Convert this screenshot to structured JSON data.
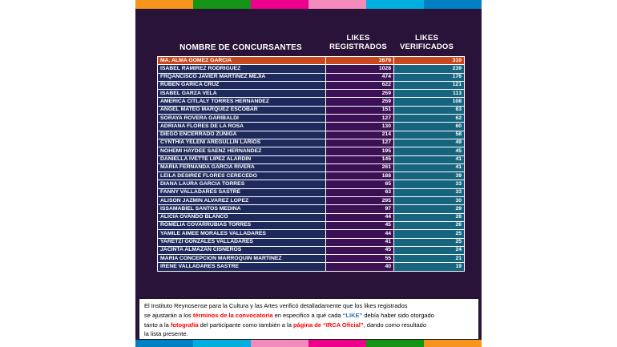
{
  "panel": {
    "background": "#2A1338"
  },
  "bars": {
    "top_colors": [
      "#F7941D",
      "#149414",
      "#EC008C",
      "#F28BBB",
      "#00AEE0",
      "#0080C4"
    ],
    "bottom_colors": [
      "#0080C4",
      "#00AEE0",
      "#F28BBB",
      "#EC008C",
      "#149414",
      "#F7941D"
    ]
  },
  "chart_data": {
    "type": "table",
    "columns": [
      "NOMBRE DE CONCURSANTES",
      "LIKES REGISTRADOS",
      "LIKES VERIFICADOS"
    ],
    "highlight_row_index": 0,
    "rows": [
      [
        "MA. ALMA GOMEZ GARCIA",
        2679,
        310
      ],
      [
        "ISABEL RAMIREZ RODRIGUEZ",
        1028,
        239
      ],
      [
        "FRQANCISCO JAVIER MARTINEZ MEJIA",
        474,
        176
      ],
      [
        "RUBEN GARICA CRUZ",
        622,
        121
      ],
      [
        "ISABEL GARZA VELA",
        259,
        113
      ],
      [
        "AMERICA CITLALY TORRES HERNANDEZ",
        259,
        108
      ],
      [
        "ANGEL MATEO MARQUEZ ESCOBAR",
        151,
        63
      ],
      [
        "SORAYA ROVERA GARIBALDI",
        127,
        62
      ],
      [
        "ADRIANA FLORES DE LA ROSA",
        130,
        60
      ],
      [
        "DIEGO ENCERRADO ZUÑIGA",
        214,
        58
      ],
      [
        "CYNTHIA YELENI AREGULLIN LARIOS",
        127,
        49
      ],
      [
        "NOHEMI HAYDEE SAENZ HERNANDEZ",
        195,
        45
      ],
      [
        "DANIELLA IVETTE LIPEZ ALARDIN",
        145,
        41
      ],
      [
        "MARIA FERNANDA GARCIA RIVERA",
        261,
        41
      ],
      [
        "LEILA DESIREE FLORES CERECEDO",
        188,
        39
      ],
      [
        "DIANA LAURA GARCIA TORRES",
        65,
        33
      ],
      [
        "FANNY VALLADARES SASTRE",
        63,
        33
      ],
      [
        "ALISON JAZMIN ALVAREZ LOPEZ",
        295,
        30
      ],
      [
        "ISSAMABIEL SANTOS MEDINA",
        97,
        29
      ],
      [
        "ALICIA OVANDO BLANCO",
        44,
        26
      ],
      [
        "ROMELIA COVARRUBIAS TORRES",
        45,
        26
      ],
      [
        "YAMILE AIMEE MORALES VALLADARES",
        44,
        25
      ],
      [
        "YARETZI GONZALES VALLADARES",
        41,
        25
      ],
      [
        "JACINTA ALMAZAN CISNEROS",
        45,
        24
      ],
      [
        "MARIA CONCEPCION MARROQUIN MARTINEZ",
        55,
        21
      ],
      [
        "IRENE VALLADARES SASTRE",
        40,
        19
      ]
    ],
    "cell_colors": {
      "name_bg": "#1F2A5C",
      "registered_bg": "#3C1054",
      "verified_bg": "#17647F",
      "highlight_bg": "#C7491D",
      "border": "#FFFFFF",
      "text": "#FFFFFF"
    }
  },
  "footnote": {
    "segments": [
      {
        "text": "El  Instituto Reynosense para la Cultura y las Artes verificó detalladamente que los likes registrados\n",
        "style": "normal"
      },
      {
        "text": "se ajustarán a los ",
        "style": "normal"
      },
      {
        "text": "términos de la convocatoria",
        "style": "red"
      },
      {
        "text": " en especifico a qué cada ",
        "style": "normal"
      },
      {
        "text": "“LIKE”",
        "style": "blue"
      },
      {
        "text": " debía haber sido otorgado\n",
        "style": "normal"
      },
      {
        "text": "tanto a la ",
        "style": "normal"
      },
      {
        "text": "fotografía",
        "style": "red"
      },
      {
        "text": " del participante como también a la ",
        "style": "normal"
      },
      {
        "text": "página de “IRCA Oficial”",
        "style": "red"
      },
      {
        "text": ", dando como resultado\n",
        "style": "normal"
      },
      {
        "text": "la lista presente.",
        "style": "normal"
      }
    ],
    "red_color": "#FF0000",
    "blue_color": "#2E74B5"
  }
}
